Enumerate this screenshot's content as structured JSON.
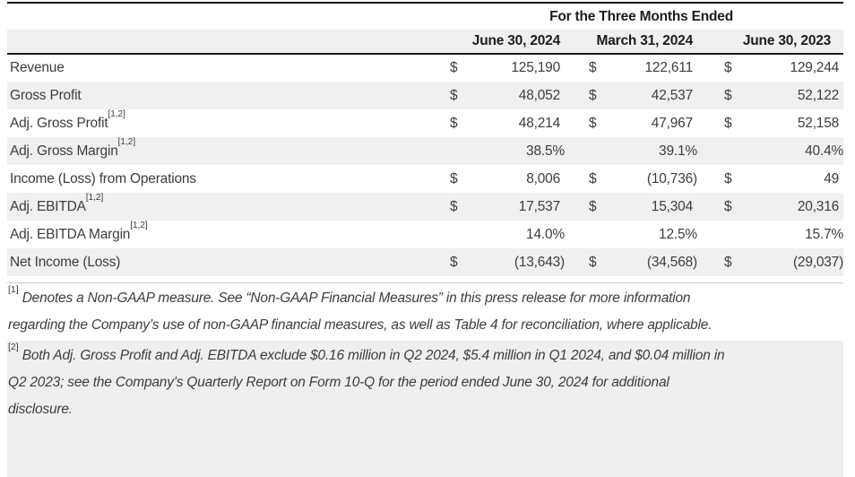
{
  "table": {
    "title": "For the Three Months Ended",
    "currency_symbol": "$",
    "columns": [
      "June 30, 2024",
      "March 31, 2024",
      "June 30, 2023"
    ],
    "rows": [
      {
        "label": "Revenue",
        "sup": "",
        "dollar": true,
        "values": [
          "125,190",
          "122,611",
          "129,244"
        ]
      },
      {
        "label": "Gross Profit",
        "sup": "",
        "dollar": true,
        "values": [
          "48,052",
          "42,537",
          "52,122"
        ]
      },
      {
        "label": "Adj. Gross Profit",
        "sup": "[1,2]",
        "dollar": true,
        "values": [
          "48,214",
          "47,967",
          "52,158"
        ]
      },
      {
        "label": "Adj. Gross Margin",
        "sup": "[1,2]",
        "dollar": false,
        "values": [
          "38.5%",
          "39.1%",
          "40.4%"
        ]
      },
      {
        "label": "Income (Loss) from Operations",
        "sup": "",
        "dollar": true,
        "values": [
          "8,006",
          "(10,736)",
          "49"
        ]
      },
      {
        "label": "Adj. EBITDA",
        "sup": "[1,2]",
        "dollar": true,
        "values": [
          "17,537",
          "15,304",
          "20,316"
        ]
      },
      {
        "label": "Adj. EBITDA Margin",
        "sup": "[1,2]",
        "dollar": false,
        "values": [
          "14.0%",
          "12.5%",
          "15.7%"
        ]
      },
      {
        "label": "Net Income (Loss)",
        "sup": "",
        "dollar": true,
        "values": [
          "(13,643)",
          "(34,568)",
          "(29,037)"
        ]
      }
    ]
  },
  "footnotes": [
    {
      "marker": "[1]",
      "lines": [
        "Denotes a Non-GAAP measure. See “Non-GAAP Financial Measures” in this press release for more information",
        "regarding the Company’s use of non-GAAP financial measures, as well as Table 4 for reconciliation, where applicable."
      ]
    },
    {
      "marker": "[2]",
      "lines": [
        "Both Adj. Gross Profit and Adj. EBITDA exclude $0.16 million in Q2 2024, $5.4 million in Q1 2024, and $0.04 million in",
        "Q2 2023; see the Company’s Quarterly Report on Form 10-Q for the period ended June 30, 2024 for additional",
        "disclosure."
      ]
    }
  ],
  "colors": {
    "row_band": "#f0f0f0",
    "footnote_band": "#efefef",
    "rule_dark": "#1a1a1a",
    "rule_light": "#c9c9c9",
    "text": "#3d3d3d",
    "heading_text": "#1c1c1c"
  }
}
